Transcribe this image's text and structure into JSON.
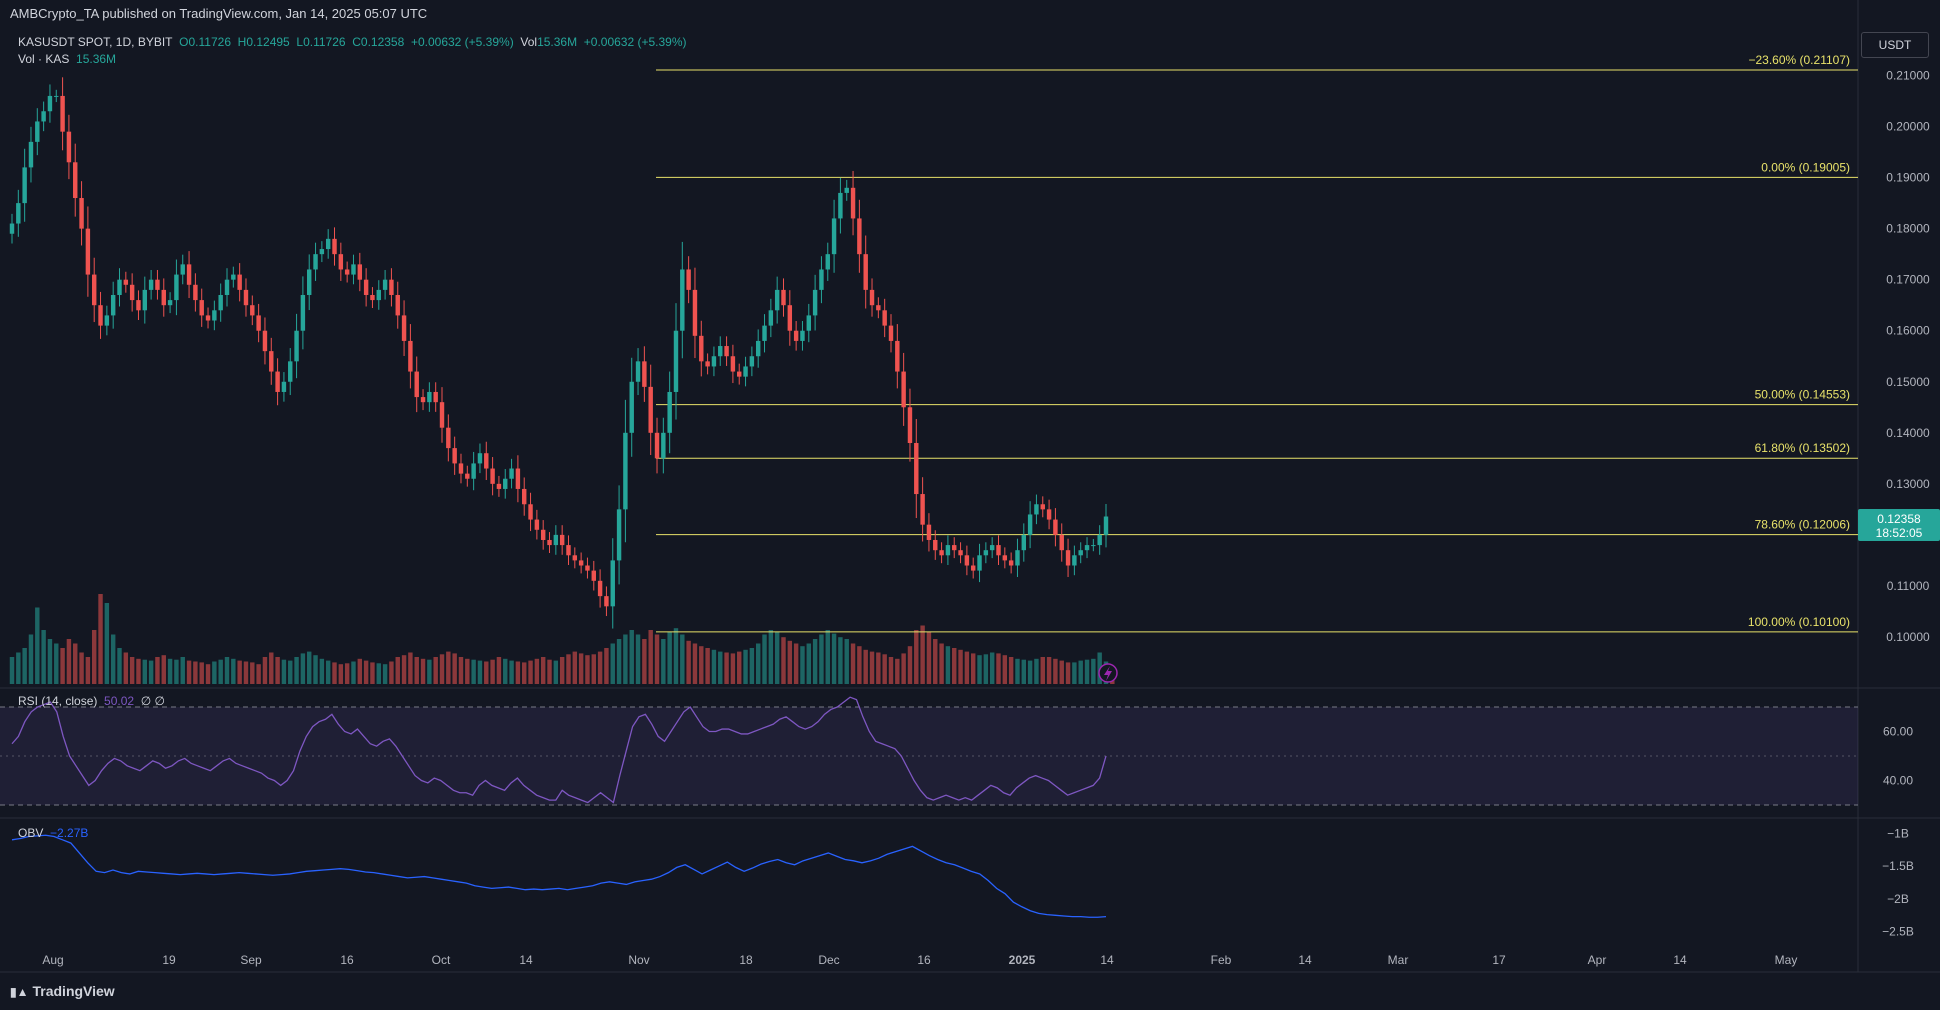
{
  "header": {
    "published": "AMBCrypto_TA published on TradingView.com, Jan 14, 2025 05:07 UTC"
  },
  "legend": {
    "symbol": "KASUSDT SPOT, 1D, BYBIT",
    "open": "O0.11726",
    "high": "H0.12495",
    "low": "L0.11726",
    "close": "C0.12358",
    "change": "+0.00632 (+5.39%)",
    "volume_label": "Vol",
    "volume_value": "15.36M",
    "volume_change": "+0.00632 (+5.39%)",
    "vol_series_label": "Vol · KAS",
    "vol_series_value": "15.36M"
  },
  "currency": "USDT",
  "rsi": {
    "label": "RSI (14, close)",
    "value": "50.02",
    "extra": "∅ ∅"
  },
  "obv": {
    "label": "OBV",
    "value": "−2.27B"
  },
  "branding": "TradingView",
  "colors": {
    "up": "#26a69a",
    "down": "#ef5350",
    "fib": "#e8e26a",
    "rsi": "#7e57c2",
    "obv": "#2962ff",
    "background": "#131722"
  },
  "chart_data": [
    {
      "type": "candlestick",
      "title": "KASUSDT SPOT, 1D, BYBIT",
      "ylim": [
        0.09,
        0.215
      ],
      "y_ticks": [
        "0.21000",
        "0.20000",
        "0.19000",
        "0.18000",
        "0.17000",
        "0.16000",
        "0.15000",
        "0.14000",
        "0.13000",
        "0.12000",
        "0.11000",
        "0.10000"
      ],
      "x_ticks": [
        "Aug",
        "19",
        "Sep",
        "16",
        "Oct",
        "14",
        "Nov",
        "18",
        "Dec",
        "16",
        "2025",
        "14",
        "Feb",
        "14",
        "Mar",
        "17",
        "Apr",
        "14",
        "May"
      ],
      "current_price": {
        "price": "0.12358",
        "countdown": "18:52:05"
      },
      "fib_levels": [
        {
          "label": "−23.60% (0.21107)",
          "price": 0.21107
        },
        {
          "label": "0.00% (0.19005)",
          "price": 0.19005
        },
        {
          "label": "50.00% (0.14553)",
          "price": 0.14553
        },
        {
          "label": "61.80% (0.13502)",
          "price": 0.13502
        },
        {
          "label": "78.60% (0.12006)",
          "price": 0.12006
        },
        {
          "label": "100.00% (0.10100)",
          "price": 0.101
        }
      ],
      "series_close": [
        0.181,
        0.185,
        0.192,
        0.197,
        0.201,
        0.203,
        0.206,
        0.206,
        0.199,
        0.193,
        0.186,
        0.18,
        0.171,
        0.165,
        0.161,
        0.163,
        0.167,
        0.17,
        0.169,
        0.166,
        0.164,
        0.168,
        0.17,
        0.168,
        0.165,
        0.166,
        0.171,
        0.173,
        0.169,
        0.166,
        0.163,
        0.162,
        0.164,
        0.167,
        0.17,
        0.171,
        0.168,
        0.165,
        0.163,
        0.16,
        0.156,
        0.152,
        0.148,
        0.15,
        0.154,
        0.16,
        0.167,
        0.172,
        0.175,
        0.176,
        0.178,
        0.175,
        0.172,
        0.171,
        0.173,
        0.17,
        0.167,
        0.166,
        0.168,
        0.17,
        0.167,
        0.163,
        0.158,
        0.152,
        0.147,
        0.146,
        0.148,
        0.146,
        0.141,
        0.137,
        0.134,
        0.132,
        0.131,
        0.134,
        0.136,
        0.133,
        0.13,
        0.129,
        0.131,
        0.133,
        0.129,
        0.126,
        0.123,
        0.121,
        0.119,
        0.118,
        0.12,
        0.118,
        0.116,
        0.115,
        0.114,
        0.113,
        0.111,
        0.108,
        0.106,
        0.115,
        0.125,
        0.14,
        0.15,
        0.154,
        0.149,
        0.14,
        0.135,
        0.14,
        0.148,
        0.16,
        0.172,
        0.168,
        0.159,
        0.154,
        0.153,
        0.155,
        0.157,
        0.155,
        0.152,
        0.151,
        0.153,
        0.155,
        0.158,
        0.161,
        0.164,
        0.168,
        0.165,
        0.16,
        0.158,
        0.16,
        0.163,
        0.168,
        0.172,
        0.175,
        0.182,
        0.187,
        0.188,
        0.182,
        0.175,
        0.168,
        0.165,
        0.164,
        0.161,
        0.158,
        0.152,
        0.145,
        0.138,
        0.128,
        0.122,
        0.119,
        0.117,
        0.116,
        0.118,
        0.117,
        0.116,
        0.114,
        0.113,
        0.116,
        0.117,
        0.118,
        0.116,
        0.115,
        0.114,
        0.117,
        0.12,
        0.124,
        0.126,
        0.125,
        0.123,
        0.12,
        0.117,
        0.114,
        0.116,
        0.117,
        0.118,
        0.118,
        0.12,
        0.1236
      ],
      "volume_relative": [
        0.3,
        0.35,
        0.4,
        0.55,
        0.85,
        0.6,
        0.5,
        0.45,
        0.4,
        0.5,
        0.45,
        0.35,
        0.3,
        0.6,
        1.0,
        0.9,
        0.55,
        0.4,
        0.35,
        0.3,
        0.28,
        0.27,
        0.26,
        0.3,
        0.32,
        0.28,
        0.27,
        0.3,
        0.26,
        0.25,
        0.24,
        0.22,
        0.25,
        0.27,
        0.3,
        0.28,
        0.26,
        0.25,
        0.24,
        0.22,
        0.3,
        0.35,
        0.3,
        0.27,
        0.26,
        0.3,
        0.34,
        0.36,
        0.32,
        0.28,
        0.26,
        0.24,
        0.22,
        0.23,
        0.25,
        0.28,
        0.26,
        0.24,
        0.23,
        0.22,
        0.25,
        0.3,
        0.32,
        0.35,
        0.3,
        0.28,
        0.27,
        0.3,
        0.33,
        0.36,
        0.34,
        0.3,
        0.28,
        0.27,
        0.26,
        0.25,
        0.27,
        0.3,
        0.28,
        0.26,
        0.25,
        0.24,
        0.26,
        0.28,
        0.3,
        0.27,
        0.26,
        0.3,
        0.33,
        0.36,
        0.34,
        0.32,
        0.33,
        0.36,
        0.4,
        0.45,
        0.5,
        0.55,
        0.6,
        0.55,
        0.5,
        0.6,
        0.55,
        0.5,
        0.58,
        0.62,
        0.55,
        0.48,
        0.45,
        0.42,
        0.4,
        0.38,
        0.36,
        0.35,
        0.34,
        0.36,
        0.38,
        0.4,
        0.45,
        0.55,
        0.6,
        0.58,
        0.52,
        0.48,
        0.45,
        0.42,
        0.45,
        0.5,
        0.55,
        0.6,
        0.56,
        0.52,
        0.5,
        0.45,
        0.42,
        0.38,
        0.36,
        0.35,
        0.33,
        0.3,
        0.28,
        0.34,
        0.42,
        0.6,
        0.65,
        0.58,
        0.5,
        0.45,
        0.42,
        0.4,
        0.38,
        0.36,
        0.34,
        0.32,
        0.33,
        0.35,
        0.34,
        0.32,
        0.3,
        0.28,
        0.27,
        0.26,
        0.28,
        0.3,
        0.3,
        0.28,
        0.26,
        0.24,
        0.24,
        0.26,
        0.27,
        0.28,
        0.35,
        0.25,
        0.15
      ]
    },
    {
      "type": "line",
      "title": "RSI (14, close)",
      "ylim": [
        27,
        75
      ],
      "y_ticks": [
        "60.00",
        "40.00"
      ],
      "band": [
        30,
        70
      ],
      "values": [
        55,
        58,
        64,
        68,
        70,
        71,
        72,
        68,
        58,
        50,
        46,
        42,
        38,
        40,
        44,
        47,
        49,
        48,
        46,
        45,
        44,
        46,
        48,
        47,
        45,
        46,
        48,
        49,
        47,
        46,
        45,
        44,
        46,
        48,
        49,
        47,
        46,
        45,
        44,
        43,
        41,
        40,
        38,
        40,
        44,
        52,
        58,
        62,
        64,
        65,
        67,
        63,
        60,
        59,
        61,
        58,
        55,
        54,
        56,
        57,
        54,
        50,
        46,
        42,
        40,
        39,
        41,
        40,
        38,
        36,
        35,
        35,
        34,
        38,
        40,
        38,
        37,
        36,
        39,
        41,
        38,
        36,
        34,
        33,
        32,
        32,
        36,
        34,
        33,
        32,
        31,
        33,
        35,
        33,
        31,
        42,
        52,
        62,
        66,
        67,
        63,
        58,
        56,
        60,
        64,
        68,
        70,
        66,
        62,
        60,
        60,
        61,
        61,
        60,
        59,
        59,
        60,
        61,
        62,
        63,
        65,
        66,
        64,
        62,
        61,
        62,
        64,
        67,
        69,
        70,
        72,
        74,
        73,
        66,
        60,
        56,
        55,
        54,
        53,
        50,
        45,
        40,
        36,
        33,
        32,
        33,
        34,
        33,
        32,
        33,
        32,
        34,
        36,
        38,
        37,
        35,
        34,
        37,
        39,
        41,
        42,
        41,
        40,
        38,
        36,
        34,
        35,
        36,
        37,
        38,
        41,
        50
      ]
    },
    {
      "type": "line",
      "title": "OBV",
      "ylim": [
        -2.55,
        -0.92
      ],
      "y_ticks": [
        "−1B",
        "−1.5B",
        "−2B",
        "−2.5B"
      ],
      "values": [
        -1.1,
        -1.08,
        -1.05,
        -1.04,
        -1.03,
        -1.05,
        -1.1,
        -1.15,
        -1.3,
        -1.45,
        -1.58,
        -1.6,
        -1.56,
        -1.6,
        -1.62,
        -1.58,
        -1.59,
        -1.6,
        -1.61,
        -1.62,
        -1.63,
        -1.62,
        -1.61,
        -1.62,
        -1.63,
        -1.62,
        -1.61,
        -1.6,
        -1.61,
        -1.62,
        -1.63,
        -1.64,
        -1.63,
        -1.62,
        -1.6,
        -1.58,
        -1.57,
        -1.56,
        -1.55,
        -1.54,
        -1.55,
        -1.57,
        -1.59,
        -1.6,
        -1.62,
        -1.64,
        -1.66,
        -1.68,
        -1.67,
        -1.66,
        -1.68,
        -1.7,
        -1.72,
        -1.74,
        -1.76,
        -1.8,
        -1.82,
        -1.84,
        -1.83,
        -1.82,
        -1.84,
        -1.86,
        -1.85,
        -1.86,
        -1.85,
        -1.84,
        -1.86,
        -1.84,
        -1.82,
        -1.8,
        -1.76,
        -1.74,
        -1.76,
        -1.78,
        -1.74,
        -1.72,
        -1.7,
        -1.66,
        -1.6,
        -1.52,
        -1.48,
        -1.55,
        -1.62,
        -1.56,
        -1.5,
        -1.44,
        -1.52,
        -1.58,
        -1.53,
        -1.47,
        -1.43,
        -1.4,
        -1.45,
        -1.48,
        -1.42,
        -1.38,
        -1.34,
        -1.3,
        -1.35,
        -1.4,
        -1.42,
        -1.45,
        -1.42,
        -1.38,
        -1.32,
        -1.28,
        -1.24,
        -1.2,
        -1.27,
        -1.34,
        -1.4,
        -1.45,
        -1.48,
        -1.53,
        -1.58,
        -1.62,
        -1.72,
        -1.84,
        -1.92,
        -2.05,
        -2.12,
        -2.18,
        -2.22,
        -2.24,
        -2.25,
        -2.26,
        -2.27,
        -2.27,
        -2.28,
        -2.28,
        -2.27
      ]
    }
  ]
}
